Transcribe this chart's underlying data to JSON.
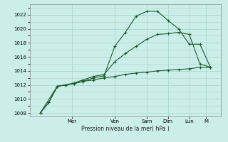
{
  "xlabel": "Pression niveau de la mer( hPa )",
  "background_color": "#cceee8",
  "grid_color": "#aad8d2",
  "line_color": "#1a5c28",
  "ylim": [
    1007.5,
    1023.5
  ],
  "xlim": [
    -0.5,
    8.5
  ],
  "yticks": [
    1008,
    1010,
    1012,
    1014,
    1016,
    1018,
    1020,
    1022
  ],
  "xtick_positions": [
    1.5,
    3.5,
    5.0,
    6.0,
    7.0,
    7.8
  ],
  "xtick_labels": [
    "Mer",
    "Ven",
    "Sam",
    "Dim",
    "Lun",
    "M"
  ],
  "curve1_x": [
    0,
    0.4,
    0.8,
    1.2,
    1.6,
    2.0,
    2.5,
    3.0,
    3.5,
    4.0,
    4.5,
    5.0,
    5.5,
    6.0,
    6.5,
    7.0,
    7.5,
    8.0
  ],
  "curve1_y": [
    1008.0,
    1009.5,
    1011.8,
    1012.0,
    1012.2,
    1012.5,
    1013.0,
    1013.3,
    1017.5,
    1019.5,
    1021.8,
    1022.5,
    1022.5,
    1021.2,
    1020.0,
    1017.8,
    1017.8,
    1014.5
  ],
  "curve2_x": [
    0,
    0.4,
    0.8,
    1.2,
    1.6,
    2.0,
    2.5,
    3.0,
    3.5,
    4.0,
    4.5,
    5.0,
    5.5,
    6.0,
    6.5,
    7.0,
    7.5,
    8.0
  ],
  "curve2_y": [
    1008.0,
    1009.5,
    1011.8,
    1012.0,
    1012.3,
    1012.7,
    1013.2,
    1013.5,
    1015.3,
    1016.5,
    1017.5,
    1018.5,
    1019.2,
    1019.3,
    1019.5,
    1019.2,
    1015.0,
    1014.5
  ],
  "curve3_x": [
    0,
    0.8,
    1.2,
    1.6,
    2.0,
    2.5,
    3.0,
    3.5,
    4.0,
    4.5,
    5.0,
    5.5,
    6.0,
    6.5,
    7.0,
    7.5,
    8.0
  ],
  "curve3_y": [
    1008.0,
    1011.8,
    1012.0,
    1012.2,
    1012.5,
    1012.7,
    1013.0,
    1013.2,
    1013.5,
    1013.7,
    1013.8,
    1014.0,
    1014.1,
    1014.2,
    1014.3,
    1014.5,
    1014.5
  ]
}
